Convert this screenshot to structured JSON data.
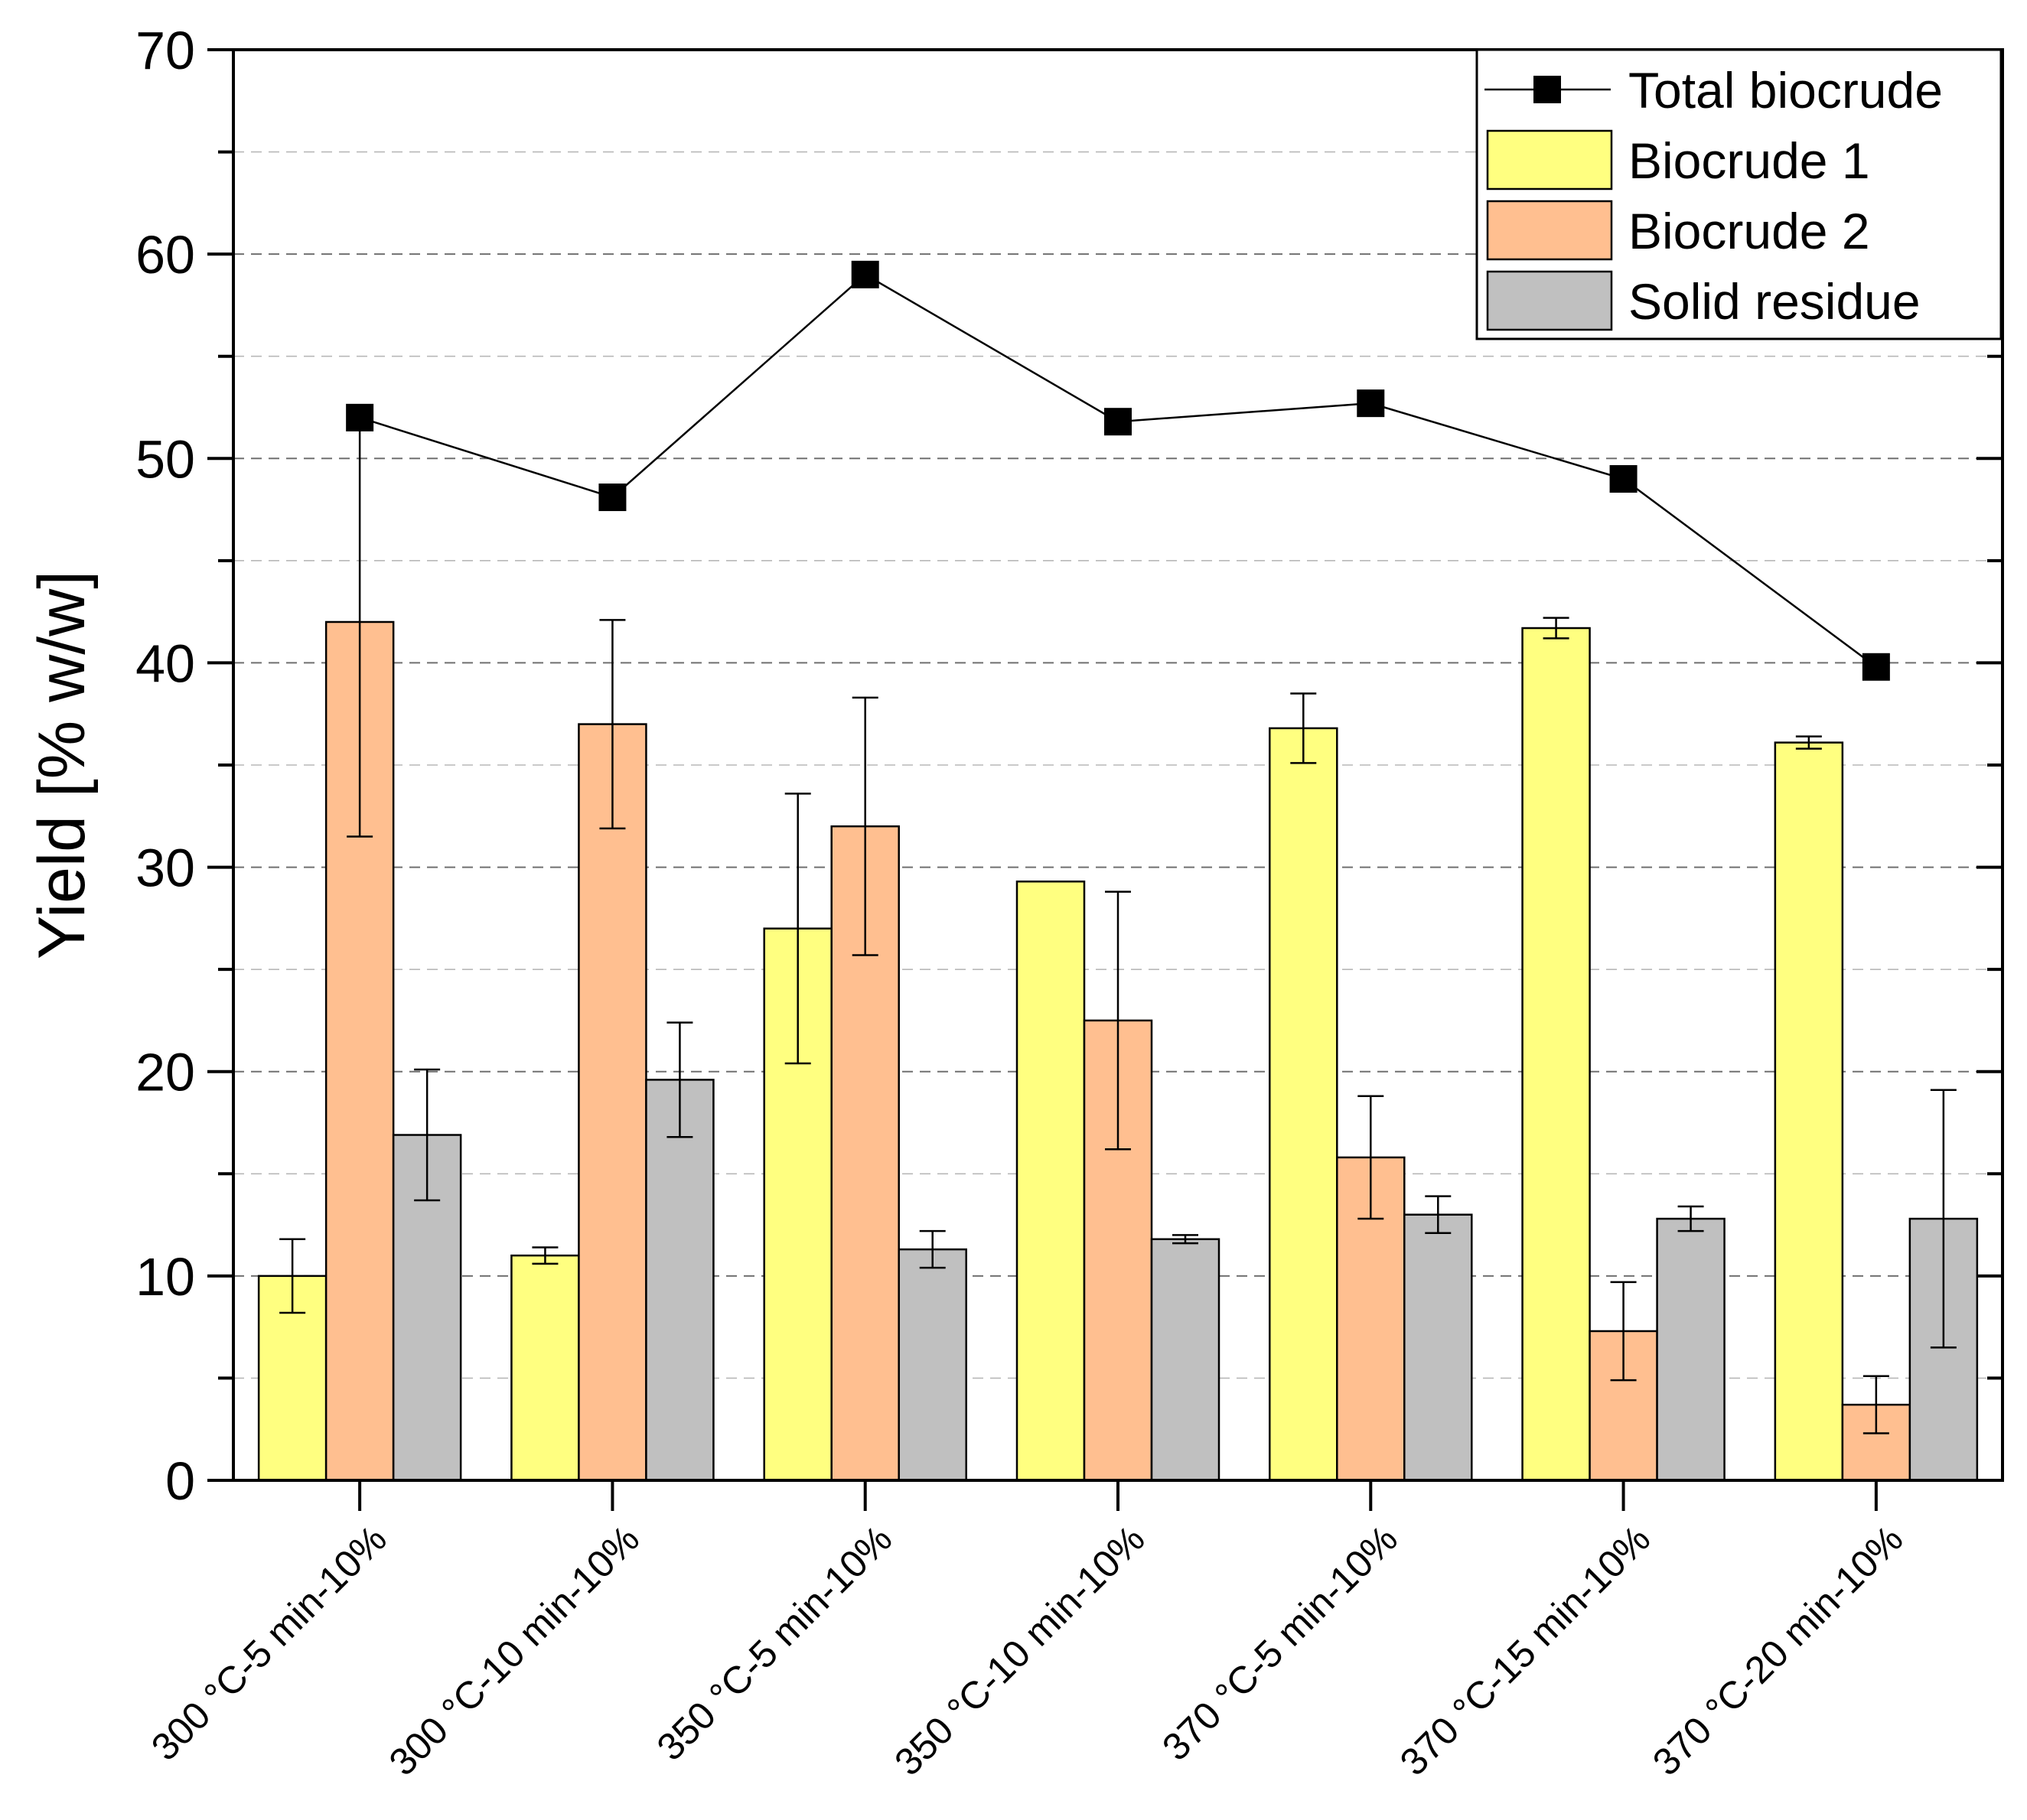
{
  "chart_data": {
    "type": "bar",
    "title": "",
    "xlabel": "",
    "ylabel": "Yield [% w/w]",
    "ylim": [
      0,
      70
    ],
    "yticks": [
      0,
      10,
      20,
      30,
      40,
      50,
      60,
      70
    ],
    "grid": "horizontal dashed",
    "legend_position": "top-right",
    "categories": [
      "300 °C-5 min-10%",
      "300 °C-10 min-10%",
      "350 °C-5 min-10%",
      "350 °C-10 min-10%",
      "370 °C-5 min-10%",
      "370 °C-15 min-10%",
      "370 °C-20 min-10%"
    ],
    "series": [
      {
        "name": "Biocrude 1",
        "kind": "bar",
        "color": "#FFFF80",
        "values": [
          10.0,
          11.0,
          27.0,
          29.3,
          36.8,
          41.7,
          36.1
        ],
        "errors": [
          1.8,
          0.4,
          6.6,
          null,
          1.7,
          0.5,
          0.3
        ]
      },
      {
        "name": "Biocrude 2",
        "kind": "bar",
        "color": "#FFBF90",
        "values": [
          42.0,
          37.0,
          32.0,
          22.5,
          15.8,
          7.3,
          3.7
        ],
        "errors": [
          10.5,
          5.1,
          6.3,
          6.3,
          3.0,
          2.4,
          1.4
        ]
      },
      {
        "name": "Solid residue",
        "kind": "bar",
        "color": "#C0C0C0",
        "values": [
          16.9,
          19.6,
          11.3,
          11.8,
          13.0,
          12.8,
          12.8
        ],
        "errors": [
          3.2,
          2.8,
          0.9,
          0.2,
          0.9,
          0.6,
          6.3
        ]
      },
      {
        "name": "Total biocrude",
        "kind": "line",
        "color": "#000000",
        "values": [
          52.0,
          48.1,
          59.0,
          51.8,
          52.7,
          49.0,
          39.8
        ]
      }
    ]
  }
}
